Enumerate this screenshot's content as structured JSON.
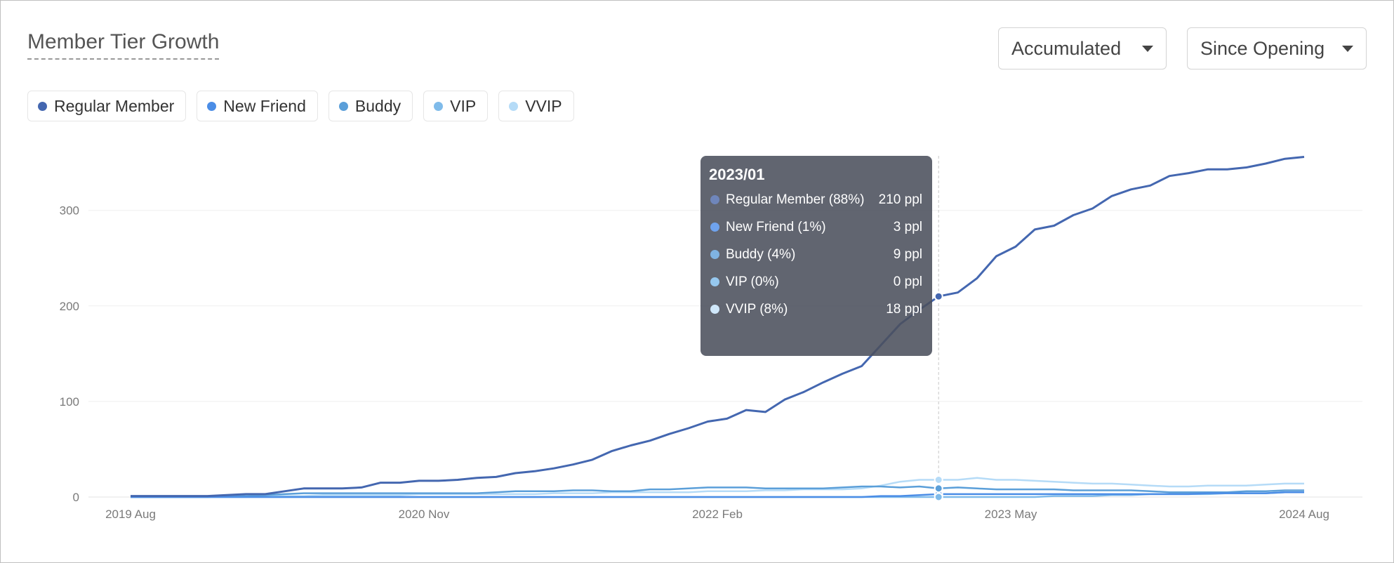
{
  "header": {
    "title": "Member Tier Growth",
    "mode_dropdown": "Accumulated",
    "range_dropdown": "Since Opening"
  },
  "legend": [
    {
      "label": "Regular Member",
      "color": "#4467b0"
    },
    {
      "label": "New Friend",
      "color": "#4b8de6"
    },
    {
      "label": "Buddy",
      "color": "#5b9fd9"
    },
    {
      "label": "VIP",
      "color": "#7fbbea"
    },
    {
      "label": "VVIP",
      "color": "#b5dbf7"
    }
  ],
  "tooltip": {
    "title": "2023/01",
    "rows": [
      {
        "name": "Regular Member (88%)",
        "value": "210 ppl",
        "color": "#6f86bb"
      },
      {
        "name": "New Friend (1%)",
        "value": "3 ppl",
        "color": "#6fa3ee"
      },
      {
        "name": "Buddy (4%)",
        "value": "9 ppl",
        "color": "#7fb3e2"
      },
      {
        "name": "VIP (0%)",
        "value": "0 ppl",
        "color": "#96c8ef"
      },
      {
        "name": "VVIP (8%)",
        "value": "18 ppl",
        "color": "#cfe7fa"
      }
    ]
  },
  "chart_data": {
    "type": "line",
    "title": "Member Tier Growth",
    "x_start": "2019 Aug",
    "x_end": "2024 Aug",
    "x_tick_labels": [
      "2019 Aug",
      "2020 Nov",
      "2022 Feb",
      "2023 May",
      "2024 Aug"
    ],
    "y_ticks": [
      0,
      100,
      200,
      300
    ],
    "ylim": [
      0,
      360
    ],
    "grid": true,
    "highlight": {
      "x": "2023/01",
      "y": 210
    },
    "series": [
      {
        "name": "Regular Member",
        "color": "#4467b0",
        "values": [
          1,
          1,
          1,
          1,
          1,
          2,
          3,
          3,
          6,
          9,
          9,
          9,
          10,
          15,
          15,
          17,
          17,
          18,
          20,
          21,
          25,
          27,
          30,
          34,
          39,
          48,
          54,
          59,
          66,
          72,
          79,
          82,
          91,
          89,
          102,
          110,
          120,
          129,
          137,
          159,
          181,
          196,
          210,
          214,
          229,
          252,
          262,
          280,
          284,
          295,
          302,
          315,
          322,
          326,
          336,
          339,
          343,
          343,
          345,
          349,
          354,
          356
        ]
      },
      {
        "name": "New Friend",
        "color": "#4b8de6",
        "values": [
          0,
          0,
          0,
          0,
          0,
          0,
          0,
          0,
          0,
          0,
          0,
          0,
          0,
          0,
          0,
          0,
          0,
          0,
          0,
          0,
          0,
          0,
          0,
          0,
          0,
          0,
          0,
          0,
          0,
          0,
          0,
          0,
          0,
          0,
          0,
          0,
          0,
          0,
          0,
          1,
          1,
          2,
          3,
          3,
          3,
          3,
          3,
          3,
          3,
          3,
          3,
          3,
          3,
          3,
          3,
          3,
          4,
          4,
          4,
          4,
          5,
          5
        ]
      },
      {
        "name": "Buddy",
        "color": "#5b9fd9",
        "values": [
          0,
          0,
          0,
          0,
          0,
          1,
          1,
          2,
          3,
          4,
          4,
          4,
          4,
          4,
          4,
          4,
          4,
          4,
          4,
          5,
          6,
          6,
          6,
          7,
          7,
          6,
          6,
          8,
          8,
          9,
          10,
          10,
          10,
          9,
          9,
          9,
          9,
          10,
          11,
          11,
          10,
          11,
          9,
          10,
          9,
          8,
          8,
          8,
          8,
          7,
          7,
          7,
          7,
          6,
          5,
          5,
          5,
          5,
          6,
          6,
          7,
          7
        ]
      },
      {
        "name": "VIP",
        "color": "#7fbbea",
        "values": [
          0,
          0,
          0,
          0,
          0,
          0,
          0,
          0,
          0,
          0,
          0,
          0,
          0,
          0,
          0,
          0,
          0,
          0,
          0,
          0,
          0,
          0,
          0,
          0,
          0,
          0,
          0,
          0,
          0,
          0,
          0,
          0,
          0,
          0,
          0,
          0,
          0,
          0,
          0,
          0,
          0,
          0,
          0,
          0,
          0,
          0,
          0,
          0,
          1,
          1,
          1,
          2,
          2,
          3,
          3,
          3,
          3,
          4,
          4,
          4,
          5,
          5
        ]
      },
      {
        "name": "VVIP",
        "color": "#b5dbf7",
        "values": [
          0,
          0,
          0,
          0,
          0,
          0,
          0,
          1,
          1,
          1,
          2,
          2,
          2,
          2,
          2,
          3,
          3,
          3,
          3,
          3,
          3,
          3,
          4,
          4,
          4,
          5,
          5,
          5,
          5,
          5,
          6,
          6,
          6,
          7,
          7,
          8,
          8,
          8,
          9,
          12,
          16,
          18,
          18,
          18,
          20,
          18,
          18,
          17,
          16,
          15,
          14,
          14,
          13,
          12,
          11,
          11,
          12,
          12,
          12,
          13,
          14,
          14
        ]
      }
    ]
  }
}
